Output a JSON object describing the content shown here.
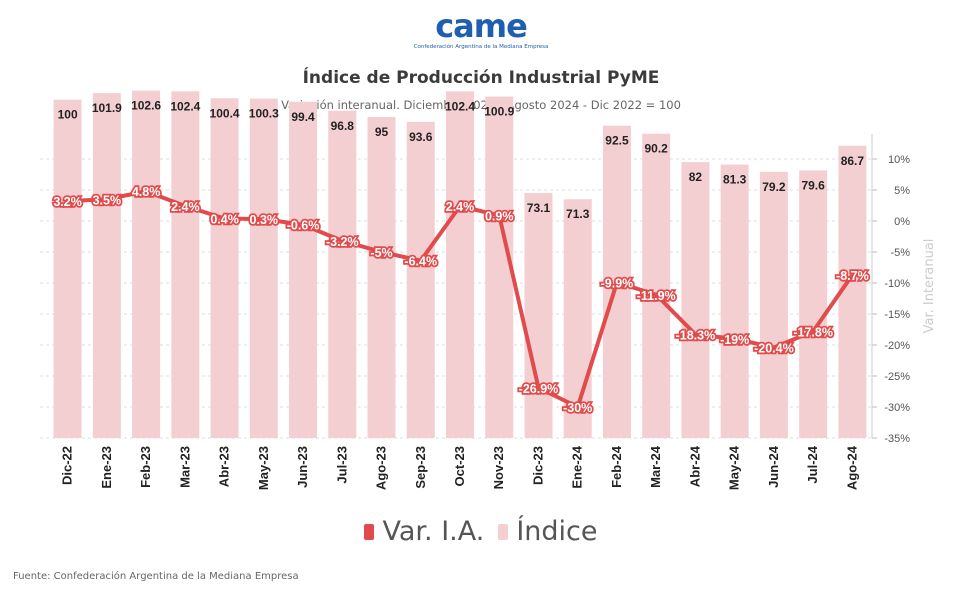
{
  "logo": {
    "word": "came",
    "tagline": "Confederación Argentina de la Mediana Empresa"
  },
  "header": {
    "title": "Índice de Producción Industrial PyME",
    "subtitle": "Variación interanual. Diciembre 2022 - Agosto 2024 - Dic 2022 = 100"
  },
  "source": "Fuente: Confederación Argentina de la Mediana Empresa",
  "colors": {
    "bar": "#f4cfd2",
    "line": "#e24b4b",
    "grid": "#dddddd"
  },
  "chart_data": {
    "type": "bar",
    "categories": [
      "Dic-22",
      "Ene-23",
      "Feb-23",
      "Mar-23",
      "Abr-23",
      "May-23",
      "Jun-23",
      "Jul-23",
      "Ago-23",
      "Sep-23",
      "Oct-23",
      "Nov-23",
      "Dic-23",
      "Ene-24",
      "Feb-24",
      "Mar-24",
      "Abr-24",
      "May-24",
      "Jun-24",
      "Jul-24",
      "Ago-24"
    ],
    "series": [
      {
        "name": "Índice",
        "type": "bar",
        "values": [
          100,
          101.9,
          102.6,
          102.4,
          100.4,
          100.3,
          99.4,
          96.8,
          95,
          93.6,
          102.4,
          100.9,
          73.1,
          71.3,
          92.5,
          90.2,
          82,
          81.3,
          79.2,
          79.6,
          86.7
        ],
        "labels": [
          "100",
          "101.9",
          "102.6",
          "102.4",
          "100.4",
          "100.3",
          "99.4",
          "96.8",
          "95",
          "93.6",
          "102.4",
          "100.9",
          "73.1",
          "71.3",
          "92.5",
          "90.2",
          "82",
          "81.3",
          "79.2",
          "79.6",
          "86.7"
        ]
      },
      {
        "name": "Var. I.A.",
        "type": "line",
        "axis": "right",
        "values": [
          3.2,
          3.5,
          4.8,
          2.4,
          0.4,
          0.3,
          -0.6,
          -3.2,
          -5,
          -6.4,
          2.4,
          0.9,
          -26.9,
          -30,
          -9.9,
          -11.9,
          -18.3,
          -19,
          -20.4,
          -17.8,
          -8.7
        ],
        "labels": [
          "3.2%",
          "3.5%",
          "4.8%",
          "2.4%",
          "0.4%",
          "0.3%",
          "-0.6%",
          "-3.2%",
          "-5%",
          "-6.4%",
          "2.4%",
          "0.9%",
          "-26.9%",
          "-30%",
          "-9.9%",
          "-11.9%",
          "-18.3%",
          "-19%",
          "-20.4%",
          "-17.8%",
          "-8.7%"
        ]
      }
    ],
    "y2label": "Var. Interanual",
    "y2ticks": [
      "10%",
      "5%",
      "0%",
      "-5%",
      "-10%",
      "-15%",
      "-20%",
      "-25%",
      "-30%",
      "-35%"
    ],
    "y2lim": [
      -35,
      10
    ],
    "grid": true,
    "legend": "bottom-center"
  }
}
